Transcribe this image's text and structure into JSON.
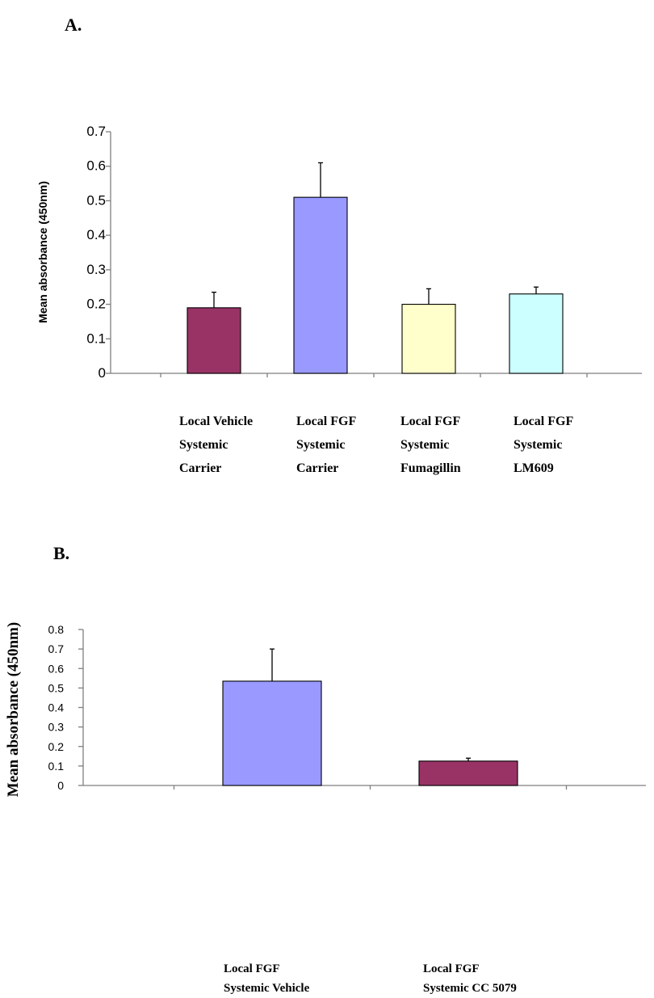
{
  "panels": {
    "a_letter": "A.",
    "b_letter": "B."
  },
  "chart_data": [
    {
      "type": "bar",
      "title": "",
      "ylabel": "Mean absorbance (450nm)",
      "ylim": [
        0,
        0.7
      ],
      "yticks": [
        "0",
        "0.1",
        "0.2",
        "0.3",
        "0.4",
        "0.5",
        "0.6",
        "0.7"
      ],
      "categories": [
        [
          "Local Vehicle",
          "Systemic",
          "Carrier"
        ],
        [
          "Local FGF",
          "Systemic",
          "Carrier"
        ],
        [
          "Local FGF",
          "Systemic",
          "Fumagillin"
        ],
        [
          "Local FGF",
          "Systemic",
          "LM609"
        ]
      ],
      "values": [
        0.19,
        0.51,
        0.2,
        0.23
      ],
      "errors": [
        0.045,
        0.1,
        0.045,
        0.02
      ],
      "colors": [
        "#993366",
        "#9999ff",
        "#ffffcc",
        "#ccffff"
      ],
      "grid": false
    },
    {
      "type": "bar",
      "title": "",
      "ylabel": "Mean absorbance (450nm)",
      "ylim": [
        0,
        0.8
      ],
      "yticks": [
        "0",
        "0.1",
        "0.2",
        "0.3",
        "0.4",
        "0.5",
        "0.6",
        "0.7",
        "0.8"
      ],
      "categories": [
        [
          "Local FGF",
          "Systemic Vehicle"
        ],
        [
          "Local FGF",
          "Systemic CC 5079"
        ]
      ],
      "values": [
        0.535,
        0.125
      ],
      "errors": [
        0.165,
        0.015
      ],
      "colors": [
        "#9999ff",
        "#993366"
      ],
      "grid": false
    }
  ]
}
